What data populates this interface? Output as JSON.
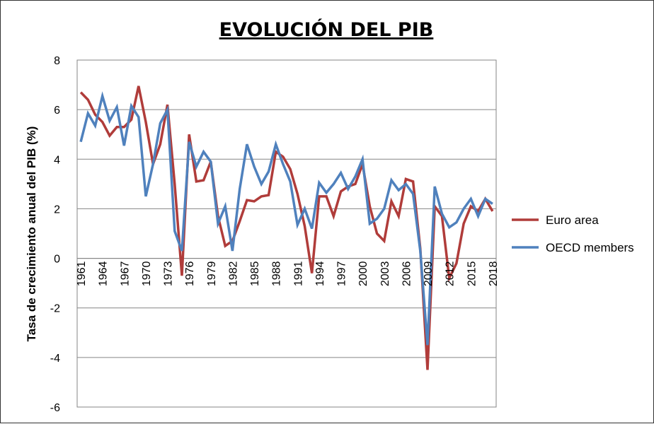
{
  "chart_data": {
    "type": "line",
    "title": "EVOLUCIÓN DEL PIB",
    "xlabel": "",
    "ylabel": "Tasa de crecimiento anual del PIB (%)",
    "ylim": [
      -6,
      8
    ],
    "yticks": [
      -6,
      -4,
      -2,
      0,
      2,
      4,
      6,
      8
    ],
    "grid": true,
    "legend": "right",
    "x": [
      1961,
      1962,
      1963,
      1964,
      1965,
      1966,
      1967,
      1968,
      1969,
      1970,
      1971,
      1972,
      1973,
      1974,
      1975,
      1976,
      1977,
      1978,
      1979,
      1980,
      1981,
      1982,
      1983,
      1984,
      1985,
      1986,
      1987,
      1988,
      1989,
      1990,
      1991,
      1992,
      1993,
      1994,
      1995,
      1996,
      1997,
      1998,
      1999,
      2000,
      2001,
      2002,
      2003,
      2004,
      2005,
      2006,
      2007,
      2008,
      2009,
      2010,
      2011,
      2012,
      2013,
      2014,
      2015,
      2016,
      2017,
      2018
    ],
    "xtick_labels": [
      "1961",
      "1964",
      "1967",
      "1970",
      "1973",
      "1976",
      "1979",
      "1982",
      "1985",
      "1988",
      "1991",
      "1994",
      "1997",
      "2000",
      "2003",
      "2006",
      "2009",
      "2012",
      "2015",
      "2018"
    ],
    "series": [
      {
        "name": "Euro area",
        "color": "#b03c3a",
        "values": [
          6.7,
          6.4,
          5.8,
          5.5,
          4.95,
          5.3,
          5.3,
          5.6,
          6.95,
          5.5,
          3.8,
          4.6,
          6.2,
          3.0,
          -0.7,
          5.0,
          3.1,
          3.15,
          3.9,
          1.7,
          0.5,
          0.7,
          1.5,
          2.35,
          2.3,
          2.5,
          2.55,
          4.3,
          4.1,
          3.6,
          2.6,
          1.3,
          -0.6,
          2.5,
          2.5,
          1.7,
          2.7,
          2.9,
          3.0,
          3.8,
          2.1,
          1.0,
          0.7,
          2.3,
          1.7,
          3.2,
          3.1,
          0.4,
          -4.5,
          2.1,
          1.7,
          -0.8,
          -0.2,
          1.4,
          2.1,
          1.9,
          2.4,
          1.9
        ]
      },
      {
        "name": "OECD members",
        "color": "#4f81bd",
        "values": [
          4.7,
          5.85,
          5.35,
          6.55,
          5.55,
          6.1,
          4.55,
          6.15,
          5.7,
          2.5,
          3.8,
          5.45,
          6.0,
          1.1,
          0.3,
          4.7,
          3.7,
          4.3,
          3.9,
          1.4,
          2.1,
          0.3,
          2.8,
          4.6,
          3.7,
          3.0,
          3.5,
          4.6,
          3.8,
          3.1,
          1.35,
          2.0,
          1.2,
          3.05,
          2.65,
          3.0,
          3.45,
          2.8,
          3.3,
          4.0,
          1.4,
          1.6,
          2.0,
          3.15,
          2.75,
          3.0,
          2.6,
          0.3,
          -3.5,
          2.9,
          1.8,
          1.25,
          1.45,
          2.0,
          2.4,
          1.7,
          2.4,
          2.2
        ]
      }
    ]
  }
}
